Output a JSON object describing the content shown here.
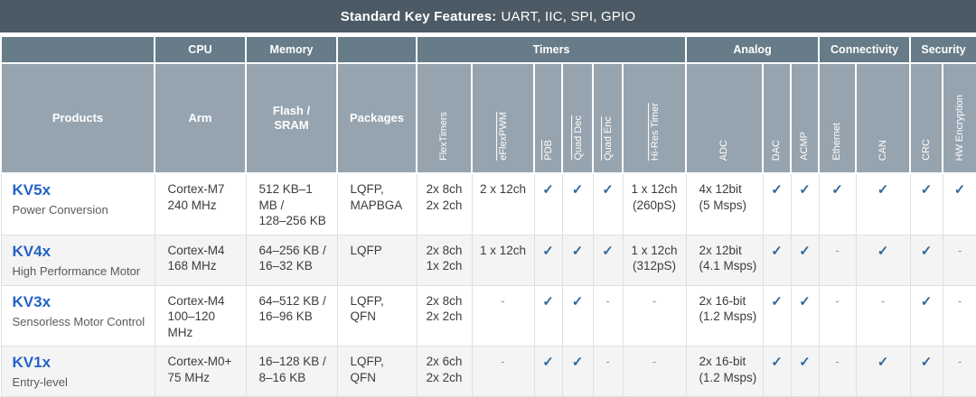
{
  "banner": {
    "title_bold": "Standard Key Features:",
    "title_rest": "UART, IIC, SPI, GPIO"
  },
  "colors": {
    "banner_bg": "#4b5a64",
    "group_header_bg": "#677b88",
    "column_header_bg": "#96a4af",
    "link_blue": "#2462c8",
    "check_blue": "#336699",
    "row_alt_bg": "#f4f4f4"
  },
  "header": {
    "groups": [
      {
        "label": "",
        "span": 1
      },
      {
        "label": "CPU",
        "span": 1
      },
      {
        "label": "Memory",
        "span": 1
      },
      {
        "label": "",
        "span": 1
      },
      {
        "label": "Timers",
        "span": 6
      },
      {
        "label": "Analog",
        "span": 3
      },
      {
        "label": "Connectivity",
        "span": 2
      },
      {
        "label": "Security",
        "span": 2
      }
    ],
    "columns": [
      {
        "label": "Products",
        "vertical": false,
        "underline": false
      },
      {
        "label": "Arm",
        "vertical": false,
        "underline": false
      },
      {
        "label": "Flash /\nSRAM",
        "vertical": false,
        "underline": false
      },
      {
        "label": "Packages",
        "vertical": false,
        "underline": false
      },
      {
        "label": "FlexTimers",
        "vertical": true,
        "underline": false
      },
      {
        "label": "eFlexPWM",
        "vertical": true,
        "underline": true
      },
      {
        "label": "PDB",
        "vertical": true,
        "underline": true
      },
      {
        "label": "Quad Dec",
        "vertical": true,
        "underline": true
      },
      {
        "label": "Quad Enc",
        "vertical": true,
        "underline": true
      },
      {
        "label": "Hi-Res Timer",
        "vertical": true,
        "underline": true
      },
      {
        "label": "ADC",
        "vertical": true,
        "underline": false
      },
      {
        "label": "DAC",
        "vertical": true,
        "underline": false
      },
      {
        "label": "ACMP",
        "vertical": true,
        "underline": false
      },
      {
        "label": "Ethernet",
        "vertical": true,
        "underline": false
      },
      {
        "label": "CAN",
        "vertical": true,
        "underline": false
      },
      {
        "label": "CRC",
        "vertical": true,
        "underline": false
      },
      {
        "label": "HW Encryption",
        "vertical": true,
        "underline": false
      }
    ]
  },
  "rows": [
    {
      "product": "KV5x",
      "subtitle": "Power Conversion",
      "cells": [
        "Cortex-M7\n240 MHz",
        "512 KB–1 MB /\n128–256 KB",
        "LQFP,\nMAPBGA",
        "2x 8ch\n2x 2ch",
        "2 x 12ch",
        "✓",
        "✓",
        "✓",
        "1 x 12ch\n(260pS)",
        "4x 12bit\n(5 Msps)",
        "✓",
        "✓",
        "✓",
        "✓",
        "✓",
        "✓"
      ]
    },
    {
      "product": "KV4x",
      "subtitle": "High Performance Motor",
      "cells": [
        "Cortex-M4\n168 MHz",
        "64–256 KB /\n16–32 KB",
        "LQFP",
        "2x 8ch\n1x 2ch",
        "1 x 12ch",
        "✓",
        "✓",
        "✓",
        "1 x 12ch\n(312pS)",
        "2x 12bit\n(4.1 Msps)",
        "✓",
        "✓",
        "-",
        "✓",
        "✓",
        "-"
      ]
    },
    {
      "product": "KV3x",
      "subtitle": "Sensorless Motor Control",
      "cells": [
        "Cortex-M4\n100–120 MHz",
        "64–512 KB /\n16–96 KB",
        "LQFP,\nQFN",
        "2x 8ch\n2x 2ch",
        "-",
        "✓",
        "✓",
        "-",
        "-",
        "2x 16-bit\n(1.2 Msps)",
        "✓",
        "✓",
        "-",
        "-",
        "✓",
        "-"
      ]
    },
    {
      "product": "KV1x",
      "subtitle": "Entry-level",
      "cells": [
        "Cortex-M0+\n75 MHz",
        "16–128 KB /\n8–16 KB",
        "LQFP,\nQFN",
        "2x 6ch\n2x 2ch",
        "-",
        "✓",
        "✓",
        "-",
        "-",
        "2x 16-bit\n(1.2 Msps)",
        "✓",
        "✓",
        "-",
        "✓",
        "✓",
        "-"
      ]
    }
  ]
}
